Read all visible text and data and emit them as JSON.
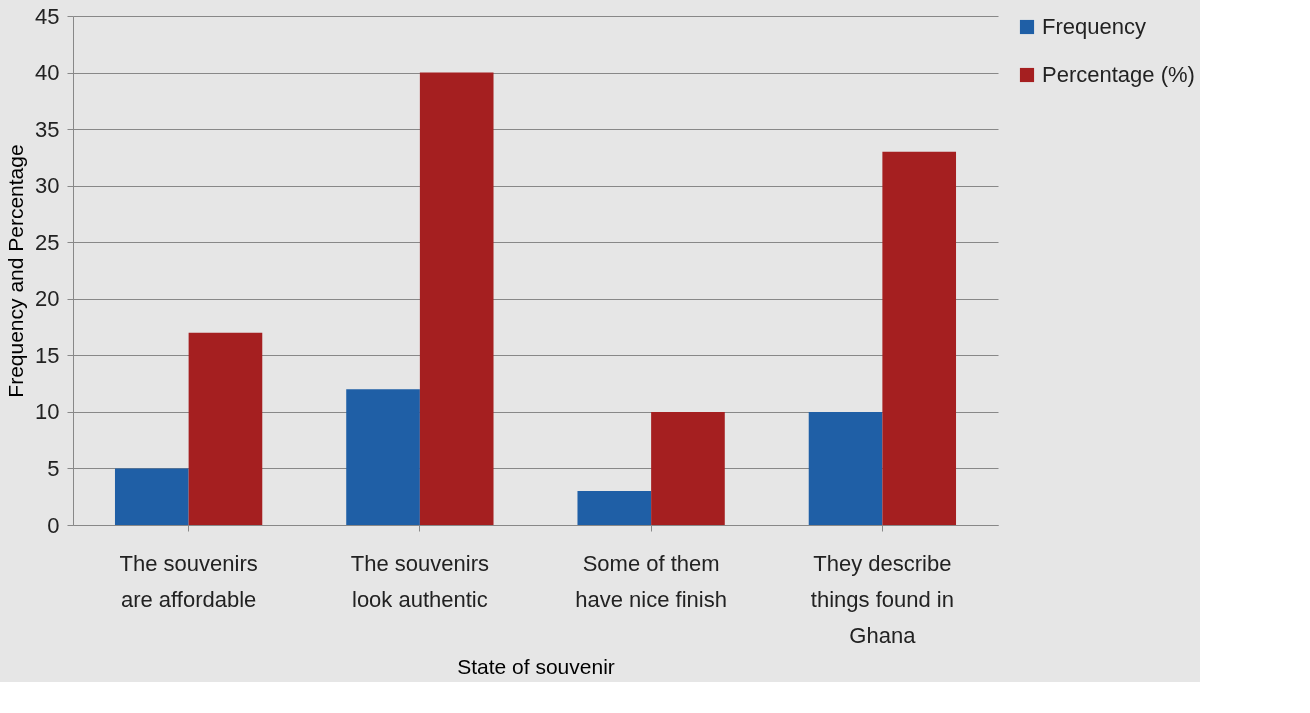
{
  "chart_data": {
    "type": "bar",
    "xlabel": "State of souvenir",
    "ylabel": "Frequency and Percentage",
    "categories": [
      "The souvenirs are affordable",
      "The souvenirs look authentic",
      "Some of them have nice finish",
      "They describe things found in Ghana"
    ],
    "series": [
      {
        "name": "Frequency",
        "color": "#1f5fa6",
        "values": [
          5,
          12,
          3,
          10
        ]
      },
      {
        "name": "Percentage (%)",
        "color": "#a51f20",
        "values": [
          17,
          40,
          10,
          33
        ]
      }
    ],
    "ylim": [
      0,
      45
    ],
    "yticks": [
      0,
      5,
      10,
      15,
      20,
      25,
      30,
      35,
      40,
      45
    ],
    "grid": "y",
    "legend": "right"
  }
}
